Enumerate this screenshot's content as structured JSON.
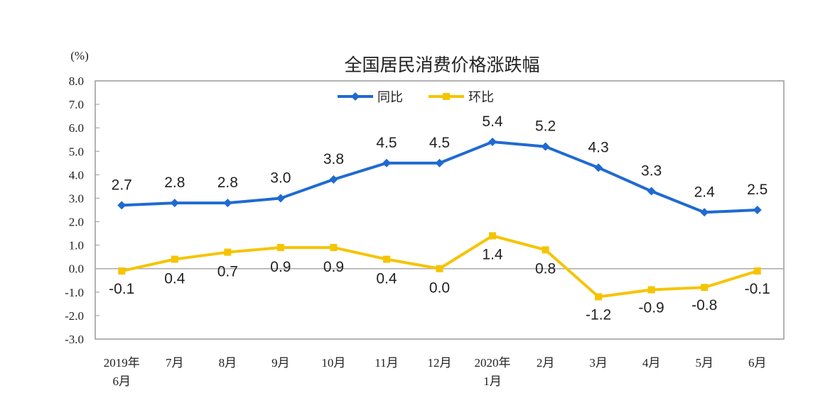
{
  "chart_data": {
    "type": "line",
    "title": "全国居民消费价格涨跌幅",
    "ylabel": "(%)",
    "ylim": [
      -3.0,
      8.0
    ],
    "yticks": [
      "8.0",
      "7.0",
      "6.0",
      "5.0",
      "4.0",
      "3.0",
      "2.0",
      "1.0",
      "0.0",
      "-1.0",
      "-2.0",
      "-3.0"
    ],
    "categories": [
      [
        "2019年",
        "6月"
      ],
      [
        "7月"
      ],
      [
        "8月"
      ],
      [
        "9月"
      ],
      [
        "10月"
      ],
      [
        "11月"
      ],
      [
        "12月"
      ],
      [
        "2020年",
        "1月"
      ],
      [
        "2月"
      ],
      [
        "3月"
      ],
      [
        "4月"
      ],
      [
        "5月"
      ],
      [
        "6月"
      ]
    ],
    "legend_position": "top-center",
    "grid": false,
    "series": [
      {
        "name": "同比",
        "color": "#1f6ad1",
        "marker": "diamond",
        "values": [
          2.7,
          2.8,
          2.8,
          3.0,
          3.8,
          4.5,
          4.5,
          5.4,
          5.2,
          4.3,
          3.3,
          2.4,
          2.5
        ]
      },
      {
        "name": "环比",
        "color": "#f5c400",
        "marker": "square",
        "values": [
          -0.1,
          0.4,
          0.7,
          0.9,
          0.9,
          0.4,
          0.0,
          1.4,
          0.8,
          -1.2,
          -0.9,
          -0.8,
          -0.1
        ]
      }
    ]
  }
}
